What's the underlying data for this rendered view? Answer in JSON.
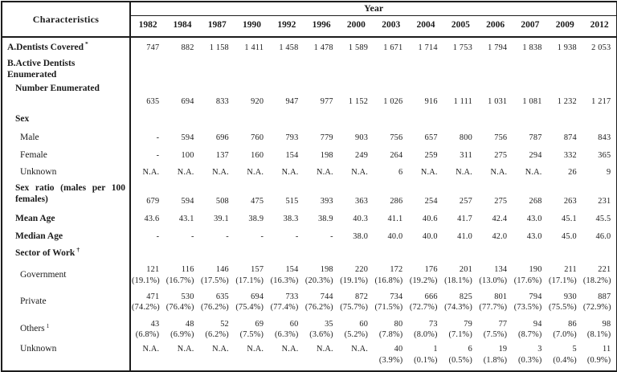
{
  "table": {
    "col_header": "Characteristics",
    "year_header": "Year",
    "years": [
      "1982",
      "1984",
      "1987",
      "1990",
      "1992",
      "1996",
      "2000",
      "2003",
      "2004",
      "2005",
      "2006",
      "2007",
      "2009",
      "2012"
    ],
    "rows": [
      {
        "key": "dentists-covered",
        "label": "A.Dentists Covered",
        "sup": "*",
        "level": 0,
        "values": [
          "747",
          "882",
          "1 158",
          "1 411",
          "1 458",
          "1 478",
          "1 589",
          "1 671",
          "1 714",
          "1 753",
          "1 794",
          "1 838",
          "1 938",
          "2 053"
        ]
      },
      {
        "key": "active-dentists-enumerated",
        "label": "B.Active Dentists Enumerated",
        "sup": "",
        "level": 0,
        "values": []
      },
      {
        "key": "number-enumerated",
        "label": "Number Enumerated",
        "sup": "",
        "level": 1,
        "values": [
          "635",
          "694",
          "833",
          "920",
          "947",
          "977",
          "1 152",
          "1 026",
          "916",
          "1 111",
          "1 031",
          "1 081",
          "1 232",
          "1 217"
        ]
      },
      {
        "key": "sex",
        "label": "Sex",
        "sup": "",
        "level": 1,
        "values": []
      },
      {
        "key": "male",
        "label": "Male",
        "sup": "",
        "level": 2,
        "values": [
          "-",
          "594",
          "696",
          "760",
          "793",
          "779",
          "903",
          "756",
          "657",
          "800",
          "756",
          "787",
          "874",
          "843"
        ]
      },
      {
        "key": "female",
        "label": "Female",
        "sup": "",
        "level": 2,
        "values": [
          "-",
          "100",
          "137",
          "160",
          "154",
          "198",
          "249",
          "264",
          "259",
          "311",
          "275",
          "294",
          "332",
          "365"
        ]
      },
      {
        "key": "sex-unknown",
        "label": "Unknown",
        "sup": "",
        "level": 2,
        "values": [
          "N.A.",
          "N.A.",
          "N.A.",
          "N.A.",
          "N.A.",
          "N.A.",
          "N.A.",
          "6",
          "N.A.",
          "N.A.",
          "N.A.",
          "N.A.",
          "26",
          "9"
        ]
      },
      {
        "key": "sex-ratio",
        "label": "Sex ratio (males per 100 females)",
        "sup": "",
        "level": 1,
        "values": [
          "679",
          "594",
          "508",
          "475",
          "515",
          "393",
          "363",
          "286",
          "254",
          "257",
          "275",
          "268",
          "263",
          "231"
        ]
      },
      {
        "key": "mean-age",
        "label": "Mean Age",
        "sup": "",
        "level": 1,
        "values": [
          "43.6",
          "43.1",
          "39.1",
          "38.9",
          "38.3",
          "38.9",
          "40.3",
          "41.1",
          "40.6",
          "41.7",
          "42.4",
          "43.0",
          "45.1",
          "45.5"
        ]
      },
      {
        "key": "median-age",
        "label": "Median Age",
        "sup": "",
        "level": 1,
        "values": [
          "-",
          "-",
          "-",
          "-",
          "-",
          "-",
          "38.0",
          "40.0",
          "40.0",
          "41.0",
          "42.0",
          "43.0",
          "45.0",
          "46.0"
        ]
      },
      {
        "key": "sector-of-work",
        "label": "Sector of Work",
        "sup": "†",
        "level": 1,
        "values": []
      },
      {
        "key": "government",
        "label": "Government",
        "sup": "",
        "level": 2,
        "values": [
          "121\n(19.1%)",
          "116\n(16.7%)",
          "146\n(17.5%)",
          "157\n(17.1%)",
          "154\n(16.3%)",
          "198\n(20.3%)",
          "220\n(19.1%)",
          "172\n(16.8%)",
          "176\n(19.2%)",
          "201\n(18.1%)",
          "134\n(13.0%)",
          "190\n(17.6%)",
          "211\n(17.1%)",
          "221\n(18.2%)"
        ]
      },
      {
        "key": "private",
        "label": "Private",
        "sup": "",
        "level": 2,
        "values": [
          "471\n(74.2%)",
          "530\n(76.4%)",
          "635\n(76.2%)",
          "694\n(75.4%)",
          "733\n(77.4%)",
          "744\n(76.2%)",
          "872\n(75.7%)",
          "734\n(71.5%)",
          "666\n(72.7%)",
          "825\n(74.3%)",
          "801\n(77.7%)",
          "794\n(73.5%)",
          "930\n(75.5%)",
          "887\n(72.9%)"
        ]
      },
      {
        "key": "others",
        "label": "Others",
        "sup": "1",
        "level": 2,
        "values": [
          "43\n(6.8%)",
          "48\n(6.9%)",
          "52\n(6.2%)",
          "69\n(7.5%)",
          "60\n(6.3%)",
          "35\n(3.6%)",
          "60\n(5.2%)",
          "80\n(7.8%)",
          "73\n(8.0%)",
          "79\n(7.1%)",
          "77\n(7.5%)",
          "94\n(8.7%)",
          "86\n(7.0%)",
          "98\n(8.1%)"
        ]
      },
      {
        "key": "sector-unknown",
        "label": "Unknown",
        "sup": "",
        "level": 2,
        "values": [
          "N.A.",
          "N.A.",
          "N.A.",
          "N.A.",
          "N.A.",
          "N.A.",
          "N.A.",
          "40\n(3.9%)",
          "1\n(0.1%)",
          "6\n(0.5%)",
          "19\n(1.8%)",
          "3\n(0.3%)",
          "5\n(0.4%)",
          "11\n(0.9%)"
        ]
      }
    ]
  }
}
